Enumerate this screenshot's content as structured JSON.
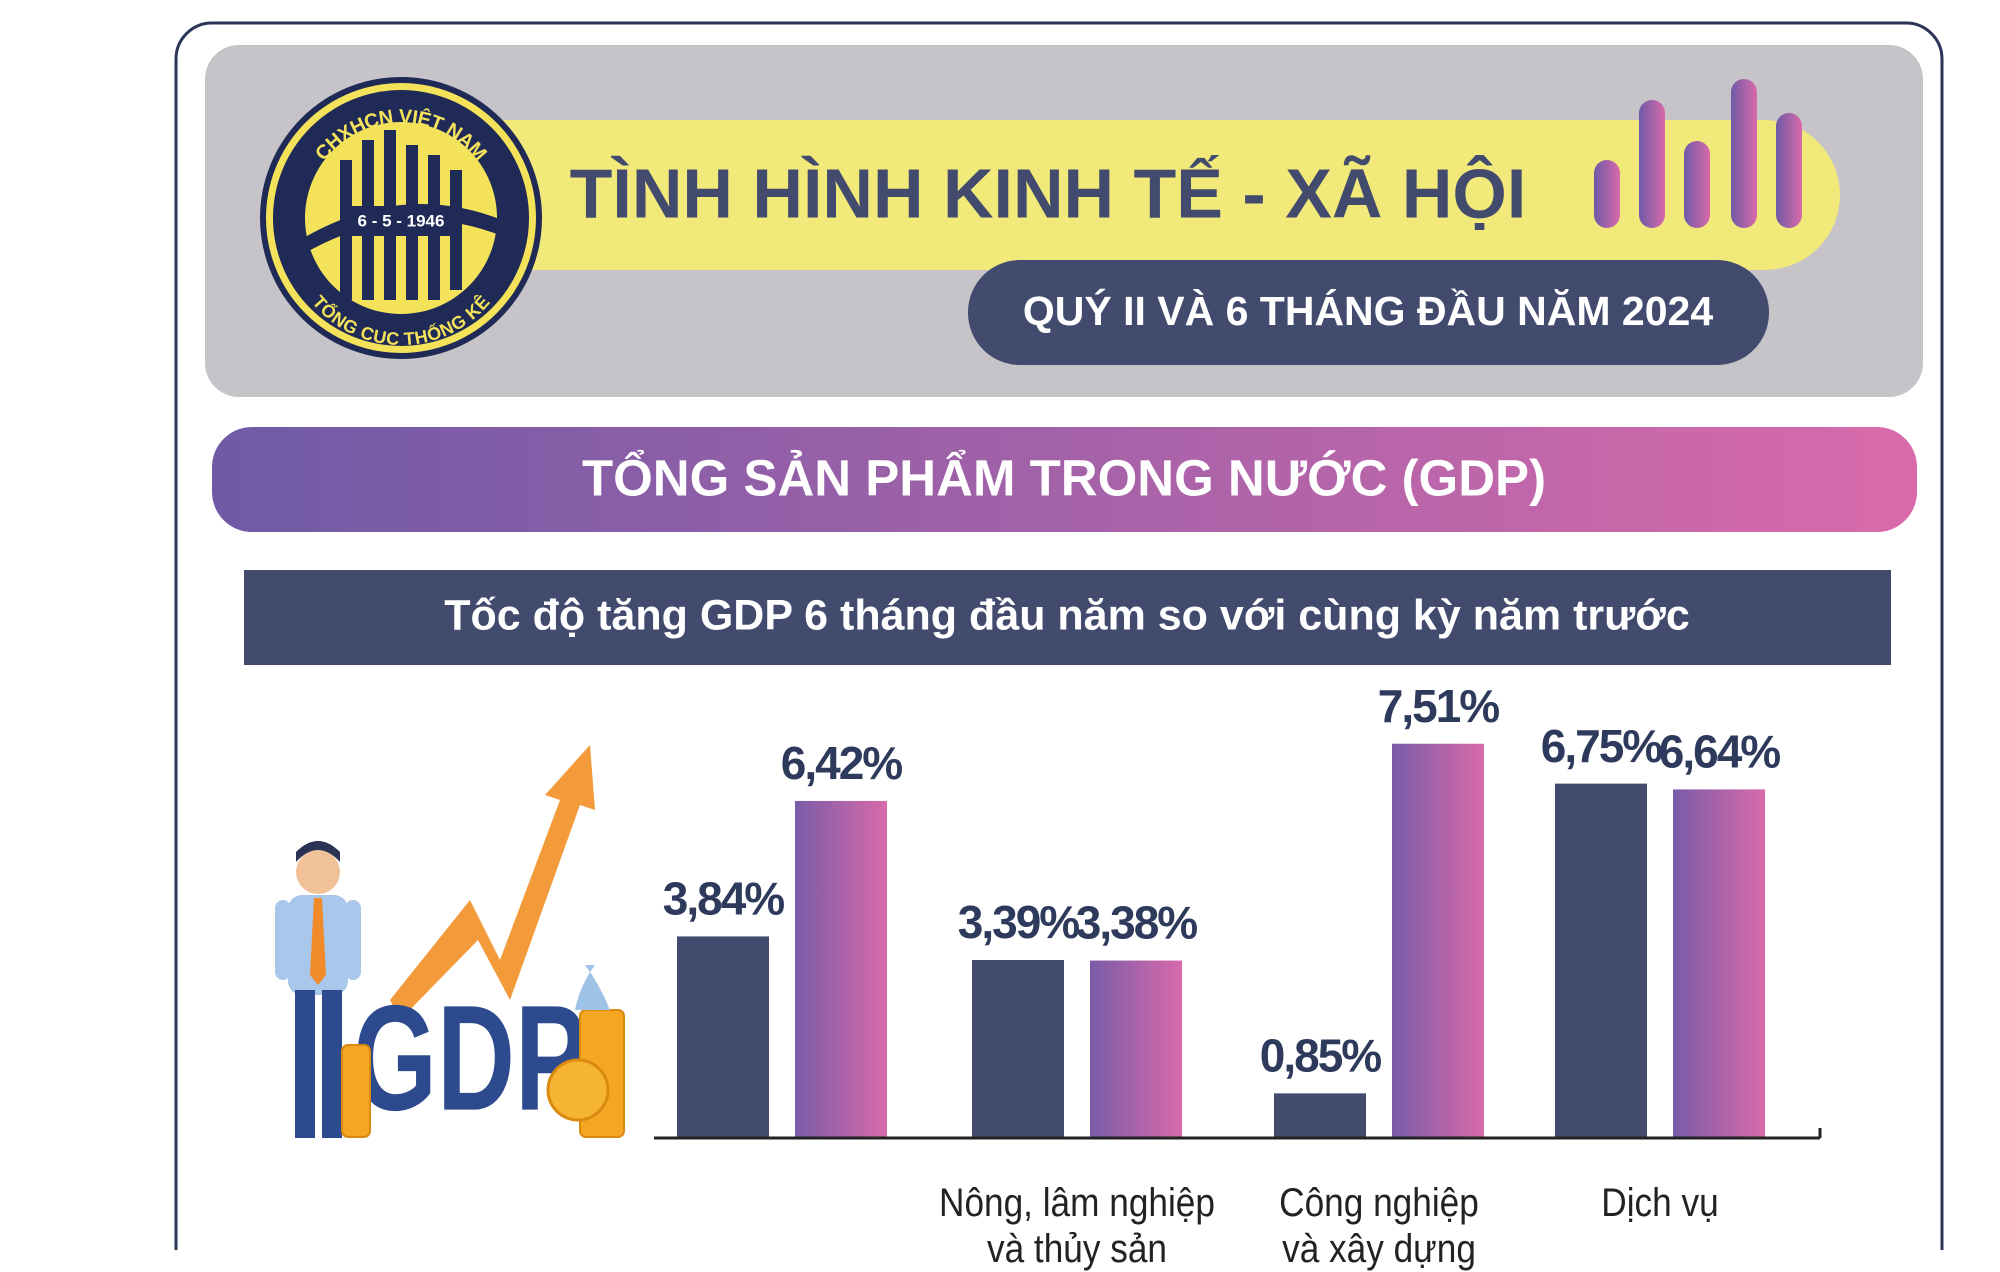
{
  "header": {
    "title": "TÌNH HÌNH KINH TẾ - XÃ HỘI",
    "subtitle": "QUÝ II VÀ 6 THÁNG ĐẦU NĂM 2024",
    "logo_top": "CHXHCN VIỆT NAM",
    "logo_date": "6 - 5 - 1946",
    "logo_bottom": "TỔNG CỤC THỐNG KÊ"
  },
  "section_title": "TỔNG SẢN PHẨM TRONG NƯỚC (GDP)",
  "illustration_text": "GDP",
  "chart_data": {
    "type": "bar",
    "title": "Tốc độ tăng GDP 6 tháng đầu năm so với cùng kỳ năm trước",
    "categories": [
      null,
      "Nông, lâm nghiệp\nvà thủy sản",
      "Công nghiệp\nvà xây dựng",
      "Dịch vụ"
    ],
    "series": [
      {
        "color": "#424b6e",
        "values": [
          3.84,
          3.39,
          0.85,
          6.75
        ],
        "value_labels": [
          "3,84%",
          "3,39%",
          "0,85%",
          "6,75%"
        ]
      },
      {
        "color": "#a965aa",
        "gradient": [
          "#7a5ca8",
          "#d86aaa"
        ],
        "values": [
          6.42,
          3.38,
          7.51,
          6.64
        ],
        "value_labels": [
          "6,42%",
          "3,38%",
          "7,51%",
          "6,64%"
        ]
      }
    ],
    "ylim": [
      0,
      8
    ]
  }
}
